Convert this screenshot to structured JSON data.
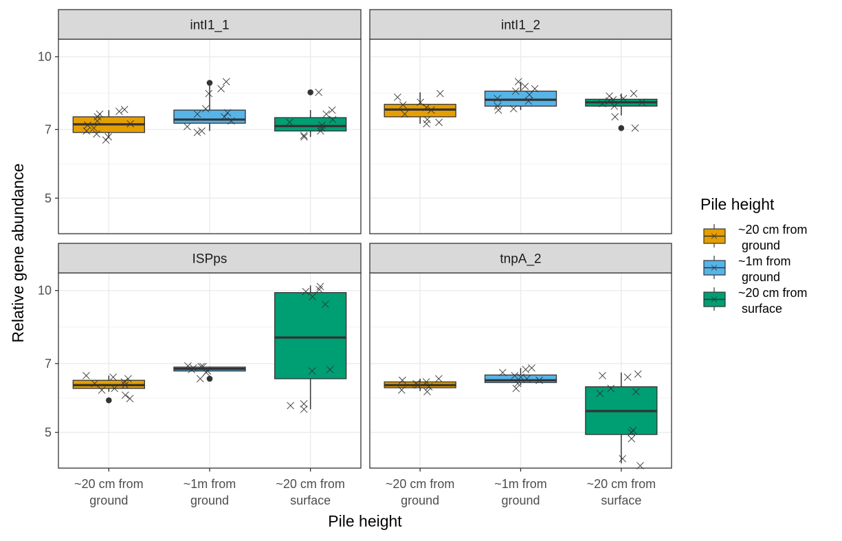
{
  "chart_data": {
    "type": "boxplot",
    "facet_layout": "2x2",
    "x_axis_title": "Pile height",
    "y_axis_title": "Relative gene abundance",
    "categories": [
      [
        "~20 cm from",
        "ground"
      ],
      [
        "~1m from",
        "ground"
      ],
      [
        "~20 cm from",
        "surface"
      ]
    ],
    "y_ticks": [
      5,
      7,
      10
    ],
    "y_scale": "log",
    "legend": {
      "title": "Pile height",
      "position": "right",
      "entries": [
        {
          "lines": [
            "~20 cm from",
            " ground"
          ],
          "color": "#E69F00"
        },
        {
          "lines": [
            "~1m from",
            " ground"
          ],
          "color": "#56B4E9"
        },
        {
          "lines": [
            "~20 cm from",
            " surface"
          ],
          "color": "#009E73"
        }
      ]
    },
    "colors": [
      "#E69F00",
      "#56B4E9",
      "#009E73"
    ],
    "panels": [
      {
        "title": "intI1_1",
        "ylim": [
          4.2,
          10.9
        ],
        "boxes": [
          {
            "q1": 6.9,
            "median": 7.18,
            "q3": 7.45,
            "whisker_low": 6.72,
            "whisker_high": 7.7,
            "outliers": [],
            "points": [
              6.65,
              6.75,
              6.85,
              6.95,
              7.05,
              7.15,
              7.2,
              7.3,
              7.45,
              7.55,
              7.65,
              7.72
            ]
          },
          {
            "q1": 7.22,
            "median": 7.35,
            "q3": 7.7,
            "whisker_low": 6.95,
            "whisker_high": 8.8,
            "outliers": [
              8.8
            ],
            "points": [
              6.9,
              6.95,
              7.1,
              7.3,
              7.45,
              7.55,
              7.6,
              7.75,
              8.35,
              8.55,
              8.85
            ]
          },
          {
            "q1": 6.95,
            "median": 7.12,
            "q3": 7.42,
            "whisker_low": 6.75,
            "whisker_high": 7.7,
            "outliers": [
              8.4
            ],
            "points": [
              6.75,
              6.8,
              6.95,
              7.05,
              7.15,
              7.25,
              7.35,
              7.55,
              7.7,
              8.4
            ]
          }
        ]
      },
      {
        "title": "intI1_2",
        "ylim": [
          4.2,
          10.9
        ],
        "boxes": [
          {
            "q1": 7.45,
            "median": 7.72,
            "q3": 7.92,
            "whisker_low": 7.2,
            "whisker_high": 8.4,
            "outliers": [],
            "points": [
              7.2,
              7.25,
              7.35,
              7.55,
              7.7,
              7.8,
              7.9,
              8.0,
              8.2,
              8.35
            ]
          },
          {
            "q1": 7.85,
            "median": 8.1,
            "q3": 8.45,
            "whisker_low": 7.7,
            "whisker_high": 8.85,
            "outliers": [],
            "points": [
              7.7,
              7.75,
              7.85,
              8.05,
              8.15,
              8.3,
              8.45,
              8.55,
              8.65,
              8.85
            ]
          },
          {
            "q1": 7.85,
            "median": 8.0,
            "q3": 8.12,
            "whisker_low": 7.5,
            "whisker_high": 8.35,
            "outliers": [
              7.05
            ],
            "points": [
              7.05,
              7.45,
              7.85,
              7.95,
              8.0,
              8.05,
              8.1,
              8.15,
              8.25,
              8.35
            ]
          }
        ]
      },
      {
        "title": "ISPps",
        "ylim": [
          4.2,
          10.9
        ],
        "boxes": [
          {
            "q1": 6.2,
            "median": 6.3,
            "q3": 6.45,
            "whisker_low": 6.1,
            "whisker_high": 6.6,
            "outliers": [
              5.85
            ],
            "points": [
              5.9,
              6.0,
              6.15,
              6.2,
              6.3,
              6.35,
              6.4,
              6.5,
              6.55,
              6.6
            ]
          },
          {
            "q1": 6.75,
            "median": 6.82,
            "q3": 6.88,
            "whisker_low": 6.75,
            "whisker_high": 6.9,
            "outliers": [
              6.5
            ],
            "points": [
              6.5,
              6.7,
              6.75,
              6.8,
              6.85,
              6.9,
              6.9,
              6.92
            ]
          },
          {
            "q1": 6.5,
            "median": 7.95,
            "q3": 9.9,
            "whisker_low": 5.6,
            "whisker_high": 10.25,
            "outliers": [],
            "points": [
              5.6,
              5.7,
              5.75,
              6.75,
              6.8,
              9.35,
              9.7,
              9.95,
              10.05,
              10.2
            ]
          }
        ]
      },
      {
        "title": "tnpA_2",
        "ylim": [
          4.2,
          10.9
        ],
        "boxes": [
          {
            "q1": 6.22,
            "median": 6.3,
            "q3": 6.4,
            "whisker_low": 6.12,
            "whisker_high": 6.5,
            "outliers": [],
            "points": [
              6.1,
              6.15,
              6.25,
              6.3,
              6.35,
              6.4,
              6.45,
              6.5
            ]
          },
          {
            "q1": 6.38,
            "median": 6.45,
            "q3": 6.62,
            "whisker_low": 6.3,
            "whisker_high": 6.85,
            "outliers": [],
            "points": [
              6.2,
              6.35,
              6.45,
              6.5,
              6.55,
              6.6,
              6.7,
              6.8,
              6.85
            ]
          },
          {
            "q1": 4.95,
            "median": 5.55,
            "q3": 6.25,
            "whisker_low": 4.3,
            "whisker_high": 6.7,
            "outliers": [],
            "points": [
              4.25,
              4.4,
              4.85,
              5.0,
              5.05,
              6.05,
              6.1,
              6.2,
              6.55,
              6.6,
              6.65
            ]
          }
        ]
      }
    ]
  }
}
